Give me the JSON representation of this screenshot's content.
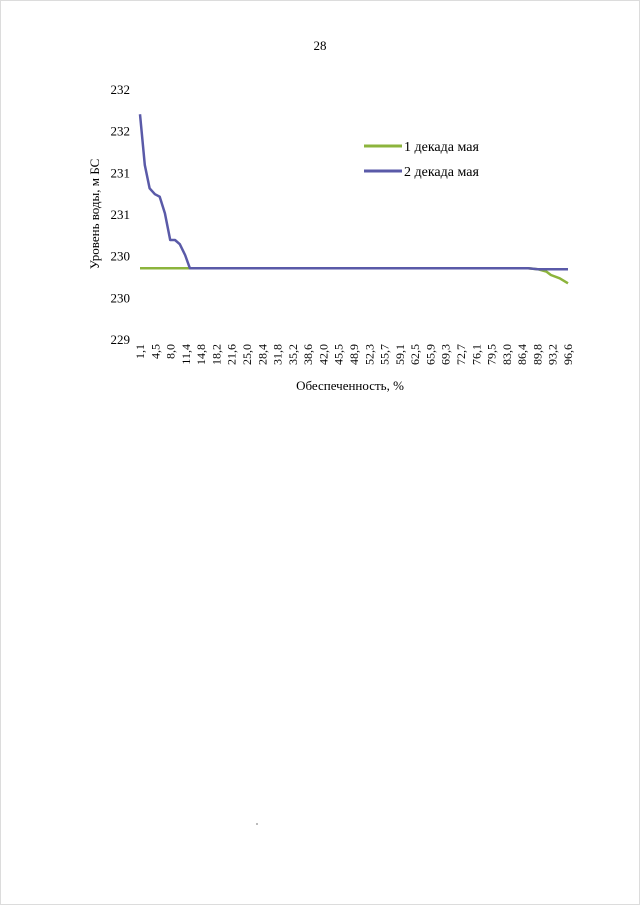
{
  "page": {
    "number": "28"
  },
  "chart_data": {
    "type": "line",
    "title": "",
    "xlabel": "Обеспеченность, %",
    "ylabel": "Уровень воды, м БС",
    "y_tick_labels": [
      "229",
      "230",
      "230",
      "231",
      "231",
      "232",
      "232"
    ],
    "y_tick_values": [
      229.0,
      229.5,
      230.0,
      230.5,
      231.0,
      231.5,
      232.0
    ],
    "ylim": [
      229.0,
      232.0
    ],
    "x_tick_labels": [
      "1,1",
      "4,5",
      "8,0",
      "11,4",
      "14,8",
      "18,2",
      "21,6",
      "25,0",
      "28,4",
      "31,8",
      "35,2",
      "38,6",
      "42,0",
      "45,5",
      "48,9",
      "52,3",
      "55,7",
      "59,1",
      "62,5",
      "65,9",
      "69,3",
      "72,7",
      "76,1",
      "79,5",
      "83,0",
      "86,4",
      "89,8",
      "93,2",
      "96,6"
    ],
    "xlim": [
      1.1,
      98.9
    ],
    "grid": false,
    "legend_position": "top-right",
    "series": [
      {
        "name": "1 декада мая",
        "color": "#8cb43c",
        "x": [
          1.1,
          14.8,
          40.0,
          70.0,
          89.8,
          92.0,
          94.0,
          95.0,
          97.0,
          98.9
        ],
        "y": [
          229.86,
          229.86,
          229.86,
          229.86,
          229.86,
          229.85,
          229.82,
          229.78,
          229.74,
          229.68
        ]
      },
      {
        "name": "2 декада мая",
        "color": "#5a5aa8",
        "x": [
          1.1,
          2.2,
          3.3,
          4.5,
          5.6,
          6.8,
          8.0,
          9.1,
          10.2,
          11.4,
          12.5,
          13.6,
          14.8,
          30.0,
          50.0,
          70.0,
          89.8,
          92.0,
          94.0,
          96.0,
          98.9
        ],
        "y": [
          231.71,
          231.1,
          230.82,
          230.75,
          230.72,
          230.52,
          230.2,
          230.2,
          230.15,
          230.02,
          229.86,
          229.86,
          229.86,
          229.86,
          229.86,
          229.86,
          229.86,
          229.85,
          229.85,
          229.85,
          229.85
        ]
      }
    ]
  }
}
